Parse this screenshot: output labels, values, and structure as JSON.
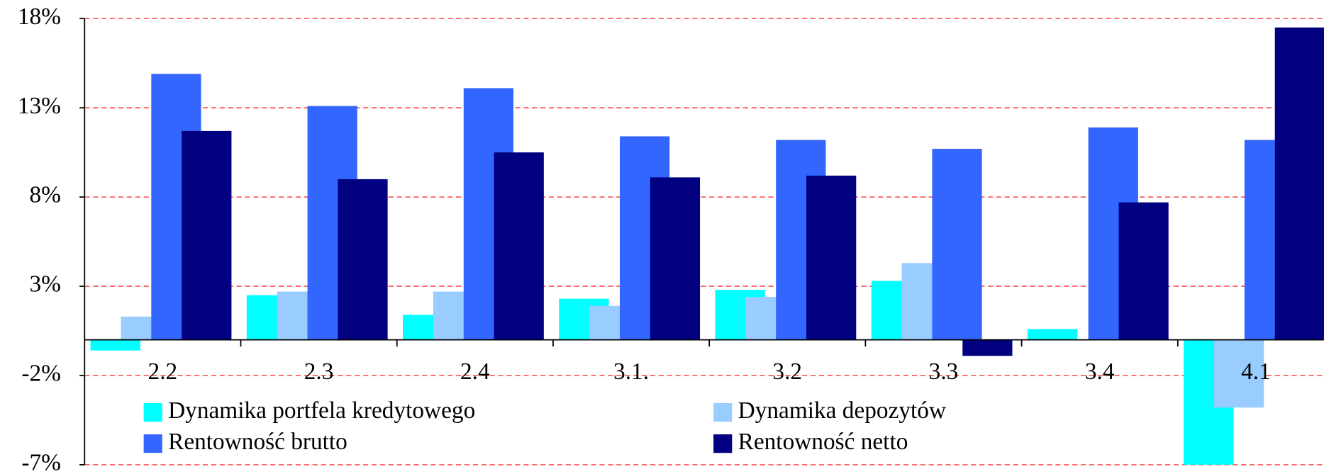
{
  "chart_data": {
    "type": "bar",
    "categories": [
      "2.2",
      "2.3",
      "2.4",
      "3.1.",
      "3.2",
      "3.3",
      "3.4",
      "4.1"
    ],
    "series": [
      {
        "name": "Dynamika portfela kredytowego",
        "color": "#00ffff",
        "values": [
          -0.6,
          2.5,
          1.4,
          2.3,
          2.8,
          3.3,
          0.6,
          -7.0
        ]
      },
      {
        "name": "Dynamika depozytów",
        "color": "#99ccff",
        "values": [
          1.3,
          2.7,
          2.7,
          1.9,
          2.4,
          4.3,
          null,
          -3.8
        ]
      },
      {
        "name": "Rentowność brutto",
        "color": "#3366ff",
        "values": [
          14.9,
          13.1,
          14.1,
          11.4,
          11.2,
          10.7,
          11.9,
          11.2
        ]
      },
      {
        "name": "Rentowność netto",
        "color": "#000080",
        "values": [
          11.7,
          9.0,
          10.5,
          9.1,
          9.2,
          -0.9,
          7.7,
          17.5
        ]
      }
    ],
    "ylim": [
      -7,
      18
    ],
    "yticks": [
      {
        "value": -7,
        "label": "-7%"
      },
      {
        "value": -2,
        "label": "-2%"
      },
      {
        "value": 3,
        "label": "3%"
      },
      {
        "value": 8,
        "label": "8%"
      },
      {
        "value": 13,
        "label": "13%"
      },
      {
        "value": 18,
        "label": "18%"
      }
    ],
    "grid": true,
    "grid_color": "#ff3333",
    "legend": "bottom"
  }
}
